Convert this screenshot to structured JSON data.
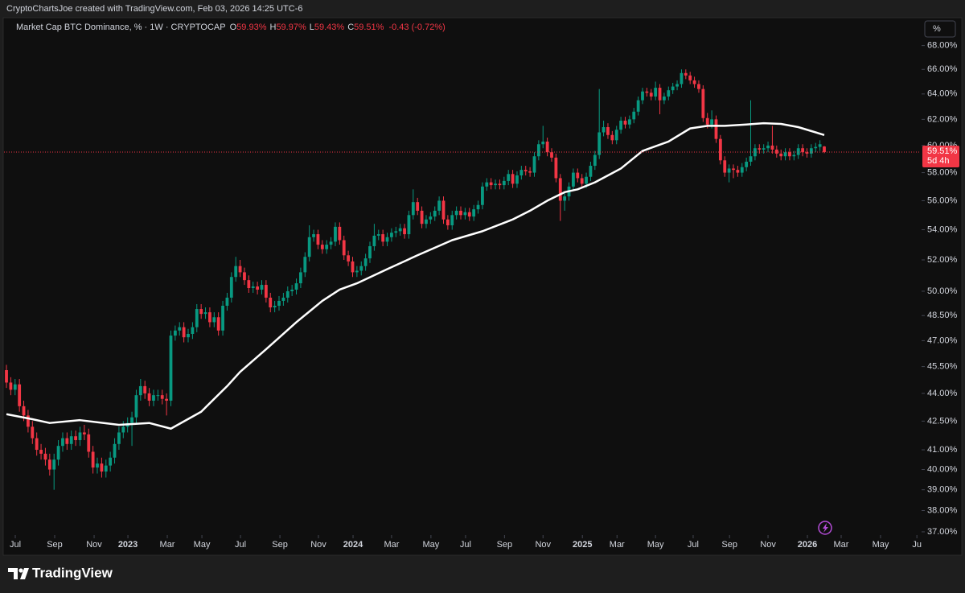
{
  "header": "CryptoChartsJoe created with TradingView.com, Feb 03, 2026 14:25 UTC-6",
  "brand": "TradingView",
  "chart_data": {
    "type": "candlestick",
    "symbol": "Market Cap BTC Dominance, % · 1W · CRYPTOCAP",
    "ohlc_keys": [
      "O",
      "H",
      "L",
      "C"
    ],
    "ohlc_labels": [
      "59.93%",
      "59.97%",
      "59.43%",
      "59.51%"
    ],
    "change": "-0.43 (-0.72%)",
    "scale_button": "%",
    "up_color": "#089981",
    "down_color": "#f23645",
    "log_scale": true,
    "open": [
      45.3,
      44.6,
      44.2,
      44.5,
      43.3,
      42.8,
      42.2,
      41.6,
      41.0,
      40.8,
      40.5,
      40.0,
      40.5,
      41.2,
      41.6,
      41.3,
      41.7,
      41.5,
      41.9,
      41.8,
      40.9,
      40.1,
      40.3,
      39.9,
      40.2,
      40.6,
      41.3,
      41.9,
      42.2,
      42.4,
      42.7,
      43.9,
      44.4,
      44.0,
      43.6,
      43.9,
      43.9,
      43.7,
      43.6,
      47.3,
      47.6,
      47.8,
      47.2,
      47.4,
      47.8,
      48.9,
      48.6,
      48.7,
      48.1,
      48.4,
      47.6,
      49.1,
      49.6,
      50.9,
      51.6,
      51.2,
      50.7,
      50.2,
      50.3,
      50.1,
      50.4,
      49.6,
      49.0,
      49.1,
      49.4,
      49.6,
      50.0,
      50.1,
      50.5,
      51.2,
      52.2,
      53.5,
      53.7,
      53.0,
      52.7,
      53.0,
      53.2,
      54.2,
      53.3,
      52.3,
      51.9,
      51.2,
      51.3,
      51.6,
      52.1,
      52.9,
      53.6,
      53.7,
      53.2,
      53.5,
      53.8,
      53.9,
      54.1,
      53.7,
      55.0,
      55.9,
      55.3,
      54.4,
      54.7,
      54.9,
      55.3,
      56.0,
      54.7,
      54.3,
      55.0,
      55.3,
      55.0,
      55.2,
      54.9,
      55.4,
      55.7,
      57.0,
      57.3,
      57.1,
      57.2,
      57.1,
      57.4,
      57.9,
      57.2,
      57.8,
      58.2,
      58.1,
      58.0,
      59.2,
      60.1,
      60.3,
      59.5,
      59.1,
      57.6,
      56.0,
      56.3,
      57.0,
      58.0,
      57.6,
      57.2,
      57.7,
      58.5,
      59.3,
      61.0,
      61.4,
      60.8,
      60.4,
      61.2,
      61.9,
      61.6,
      62.0,
      62.6,
      63.5,
      64.2,
      64.1,
      63.8,
      64.5,
      63.5,
      63.8,
      64.3,
      64.6,
      64.8,
      65.7,
      65.5,
      65.1,
      64.8,
      64.4,
      62.1,
      61.6,
      62.0,
      60.5,
      58.9,
      58.0,
      58.3,
      58.2,
      58.0,
      58.4,
      58.8,
      59.2,
      59.8,
      59.7,
      59.8,
      60.0,
      59.7,
      59.4,
      59.2,
      59.5,
      59.2,
      59.3,
      59.8,
      59.5,
      59.4,
      59.8,
      59.9,
      59.93
    ],
    "high": [
      45.6,
      44.9,
      44.8,
      44.8,
      43.6,
      43.1,
      42.5,
      41.9,
      41.3,
      41.1,
      40.8,
      40.8,
      41.5,
      41.9,
      41.9,
      42.0,
      42.0,
      42.2,
      42.3,
      42.1,
      41.2,
      40.6,
      40.6,
      40.5,
      40.9,
      41.6,
      42.2,
      42.5,
      42.7,
      43.0,
      44.2,
      44.8,
      44.7,
      44.3,
      44.2,
      44.2,
      44.2,
      44.0,
      47.6,
      47.9,
      48.1,
      48.1,
      47.7,
      48.1,
      49.2,
      49.2,
      49.0,
      49.0,
      48.7,
      48.7,
      49.4,
      49.9,
      51.2,
      52.2,
      52.0,
      51.5,
      51.0,
      50.6,
      50.6,
      50.7,
      50.7,
      49.9,
      49.4,
      49.7,
      49.9,
      50.3,
      50.4,
      50.8,
      51.5,
      52.5,
      54.3,
      54.0,
      54.0,
      53.3,
      53.3,
      53.5,
      54.5,
      54.5,
      53.6,
      52.6,
      52.2,
      51.6,
      51.9,
      52.4,
      53.2,
      54.4,
      54.0,
      54.0,
      53.8,
      54.1,
      54.2,
      54.4,
      54.4,
      55.3,
      56.8,
      56.2,
      55.6,
      55.0,
      55.2,
      55.6,
      56.3,
      56.3,
      55.0,
      55.3,
      55.6,
      55.6,
      55.5,
      55.5,
      55.7,
      56.0,
      57.3,
      57.6,
      57.6,
      57.5,
      57.5,
      57.7,
      58.2,
      58.2,
      58.1,
      58.5,
      58.5,
      58.4,
      59.5,
      60.4,
      61.5,
      60.6,
      59.8,
      59.4,
      57.9,
      56.6,
      57.3,
      58.3,
      58.3,
      57.9,
      58.0,
      58.8,
      59.6,
      64.4,
      61.9,
      61.7,
      61.1,
      61.5,
      62.2,
      62.2,
      62.3,
      62.9,
      63.8,
      64.5,
      64.5,
      64.4,
      65.0,
      64.8,
      64.1,
      64.6,
      64.9,
      65.1,
      66.0,
      66.0,
      65.8,
      65.4,
      65.1,
      64.7,
      62.5,
      62.7,
      62.3,
      60.8,
      59.2,
      58.6,
      58.6,
      58.5,
      58.7,
      59.1,
      63.5,
      60.1,
      60.1,
      60.1,
      60.3,
      61.5,
      60.0,
      59.7,
      59.8,
      59.8,
      59.6,
      60.1,
      60.1,
      59.8,
      60.1,
      60.2,
      60.4,
      59.97
    ],
    "low": [
      44.3,
      43.9,
      43.9,
      43.0,
      42.5,
      41.9,
      41.3,
      40.7,
      40.5,
      40.2,
      39.7,
      39.0,
      40.2,
      40.9,
      41.0,
      41.0,
      41.2,
      41.2,
      41.5,
      40.6,
      39.8,
      39.8,
      39.6,
      39.6,
      39.9,
      40.3,
      41.0,
      41.6,
      41.9,
      41.2,
      42.4,
      43.6,
      43.7,
      43.3,
      43.3,
      43.6,
      43.4,
      42.8,
      43.3,
      47.0,
      47.3,
      46.9,
      46.9,
      47.1,
      47.5,
      48.3,
      48.3,
      47.8,
      47.8,
      47.3,
      47.3,
      48.8,
      49.3,
      50.6,
      50.9,
      50.4,
      49.9,
      49.9,
      49.8,
      49.8,
      49.3,
      48.7,
      48.7,
      48.8,
      49.1,
      49.3,
      49.7,
      49.8,
      50.2,
      50.9,
      51.9,
      53.2,
      52.7,
      52.4,
      52.4,
      52.7,
      52.9,
      53.0,
      52.0,
      51.6,
      50.9,
      50.9,
      51.0,
      51.3,
      51.8,
      52.6,
      53.3,
      52.9,
      52.9,
      53.2,
      53.5,
      53.6,
      53.4,
      53.4,
      54.7,
      55.0,
      54.1,
      54.1,
      54.4,
      54.6,
      55.0,
      54.4,
      54.0,
      54.0,
      54.7,
      54.7,
      54.7,
      54.6,
      54.6,
      55.1,
      55.4,
      56.7,
      56.8,
      56.8,
      56.8,
      56.8,
      57.1,
      56.9,
      56.9,
      57.5,
      57.8,
      57.7,
      57.7,
      58.9,
      59.8,
      59.2,
      58.8,
      57.3,
      54.6,
      55.3,
      56.0,
      56.7,
      57.3,
      56.9,
      56.9,
      57.4,
      58.2,
      59.0,
      60.7,
      60.5,
      60.1,
      60.1,
      60.9,
      61.3,
      61.3,
      61.7,
      62.3,
      63.2,
      63.8,
      63.5,
      63.5,
      62.4,
      63.2,
      63.5,
      64.0,
      64.3,
      64.5,
      65.2,
      64.8,
      64.5,
      64.1,
      61.8,
      61.3,
      61.3,
      60.2,
      58.6,
      57.7,
      57.3,
      57.6,
      57.7,
      57.7,
      58.1,
      58.5,
      58.9,
      59.4,
      59.4,
      59.5,
      59.4,
      59.1,
      58.9,
      58.9,
      58.9,
      58.9,
      59.0,
      59.2,
      59.1,
      59.1,
      59.5,
      59.6,
      59.43
    ],
    "close": [
      44.6,
      44.2,
      44.5,
      43.3,
      42.8,
      42.2,
      41.6,
      41.0,
      40.8,
      40.5,
      40.0,
      40.5,
      41.2,
      41.6,
      41.3,
      41.7,
      41.5,
      41.9,
      41.8,
      40.9,
      40.1,
      40.3,
      39.9,
      40.2,
      40.6,
      41.3,
      41.9,
      42.2,
      42.4,
      42.7,
      43.9,
      44.4,
      44.0,
      43.6,
      43.9,
      43.9,
      43.7,
      43.6,
      47.3,
      47.6,
      47.8,
      47.2,
      47.4,
      47.8,
      48.9,
      48.6,
      48.7,
      48.1,
      48.4,
      47.6,
      49.1,
      49.6,
      50.9,
      51.6,
      51.2,
      50.7,
      50.2,
      50.3,
      50.1,
      50.4,
      49.6,
      49.0,
      49.1,
      49.4,
      49.6,
      50.0,
      50.1,
      50.5,
      51.2,
      52.2,
      53.5,
      53.7,
      53.0,
      52.7,
      53.0,
      53.2,
      54.2,
      53.3,
      52.3,
      51.9,
      51.2,
      51.3,
      51.6,
      52.1,
      52.9,
      53.6,
      53.7,
      53.2,
      53.5,
      53.8,
      53.9,
      54.1,
      53.7,
      55.0,
      55.9,
      55.3,
      54.4,
      54.7,
      54.9,
      55.3,
      56.0,
      54.7,
      54.3,
      55.0,
      55.3,
      55.0,
      55.2,
      54.9,
      55.4,
      55.7,
      57.0,
      57.3,
      57.1,
      57.2,
      57.1,
      57.4,
      57.9,
      57.2,
      57.8,
      58.2,
      58.1,
      58.0,
      59.2,
      60.1,
      60.3,
      59.5,
      59.1,
      57.6,
      56.0,
      56.3,
      57.0,
      58.0,
      57.6,
      57.2,
      57.7,
      58.5,
      59.3,
      61.0,
      61.4,
      60.8,
      60.4,
      61.2,
      61.9,
      61.6,
      62.0,
      62.6,
      63.5,
      64.2,
      64.1,
      63.8,
      64.5,
      63.5,
      63.8,
      64.3,
      64.6,
      64.8,
      65.7,
      65.5,
      65.1,
      64.8,
      64.4,
      62.1,
      61.6,
      62.0,
      60.5,
      58.9,
      58.0,
      58.3,
      58.2,
      58.0,
      58.4,
      58.8,
      59.2,
      59.8,
      59.7,
      59.8,
      60.0,
      59.7,
      59.4,
      59.2,
      59.5,
      59.2,
      59.3,
      59.8,
      59.5,
      59.4,
      59.8,
      59.9,
      60.1,
      59.51
    ],
    "moving_average": {
      "color": "#ffffff",
      "x": [
        0,
        6,
        10,
        17,
        26,
        33,
        38,
        45,
        51,
        54,
        60,
        67,
        73,
        77,
        81,
        88,
        95,
        103,
        110,
        117,
        121,
        125,
        129,
        132,
        136,
        142,
        147,
        153,
        158,
        162,
        166,
        171,
        175,
        179,
        183,
        186,
        189
      ],
      "values": [
        42.87,
        42.6,
        42.4,
        42.55,
        42.3,
        42.4,
        42.1,
        43.0,
        44.4,
        45.2,
        46.5,
        48.1,
        49.4,
        50.1,
        50.5,
        51.4,
        52.3,
        53.3,
        53.9,
        54.7,
        55.3,
        56.0,
        56.6,
        56.8,
        57.3,
        58.3,
        59.6,
        60.3,
        61.3,
        61.5,
        61.5,
        61.6,
        61.7,
        61.65,
        61.4,
        61.1,
        60.8
      ]
    },
    "last_price_label": "59.51%",
    "countdown": "5d 4h",
    "ylim": [
      36.85,
      70.2
    ],
    "yticks": [
      {
        "value": 37,
        "label": "37.00%"
      },
      {
        "value": 38,
        "label": "38.00%"
      },
      {
        "value": 39,
        "label": "39.00%"
      },
      {
        "value": 40,
        "label": "40.00%"
      },
      {
        "value": 41,
        "label": "41.00%"
      },
      {
        "value": 42.5,
        "label": "42.50%"
      },
      {
        "value": 44,
        "label": "44.00%"
      },
      {
        "value": 45.5,
        "label": "45.50%"
      },
      {
        "value": 47,
        "label": "47.00%"
      },
      {
        "value": 48.5,
        "label": "48.50%"
      },
      {
        "value": 50,
        "label": "50.00%"
      },
      {
        "value": 52,
        "label": "52.00%"
      },
      {
        "value": 54,
        "label": "54.00%"
      },
      {
        "value": 56,
        "label": "56.00%"
      },
      {
        "value": 58,
        "label": "58.00%"
      },
      {
        "value": 60,
        "label": "60.00%"
      },
      {
        "value": 62,
        "label": "62.00%"
      },
      {
        "value": 64,
        "label": "64.00%"
      },
      {
        "value": 66,
        "label": "66.00%"
      },
      {
        "value": 68,
        "label": "68.00%"
      }
    ],
    "xlim": [
      -0.56,
      211.3
    ],
    "xticks": [
      {
        "value": 2.04,
        "label": "Jul"
      },
      {
        "value": 11.15,
        "label": "Sep"
      },
      {
        "value": 20.26,
        "label": "Nov"
      },
      {
        "value": 28.07,
        "label": "2023"
      },
      {
        "value": 37.17,
        "label": "Mar"
      },
      {
        "value": 45.17,
        "label": "May"
      },
      {
        "value": 54.09,
        "label": "Jul"
      },
      {
        "value": 63.2,
        "label": "Sep"
      },
      {
        "value": 72.1,
        "label": "Nov"
      },
      {
        "value": 80.1,
        "label": "2024"
      },
      {
        "value": 89.0,
        "label": "Mar"
      },
      {
        "value": 98.1,
        "label": "May"
      },
      {
        "value": 106.1,
        "label": "Jul"
      },
      {
        "value": 115.1,
        "label": "Sep"
      },
      {
        "value": 124.0,
        "label": "Nov"
      },
      {
        "value": 133.1,
        "label": "2025"
      },
      {
        "value": 141.1,
        "label": "Mar"
      },
      {
        "value": 150.0,
        "label": "May"
      },
      {
        "value": 158.7,
        "label": "Jul"
      },
      {
        "value": 167.1,
        "label": "Sep"
      },
      {
        "value": 176.0,
        "label": "Nov"
      },
      {
        "value": 185.1,
        "label": "2026"
      },
      {
        "value": 192.9,
        "label": "Mar"
      },
      {
        "value": 202.0,
        "label": "May"
      },
      {
        "value": 210.4,
        "label": "Ju"
      }
    ]
  }
}
